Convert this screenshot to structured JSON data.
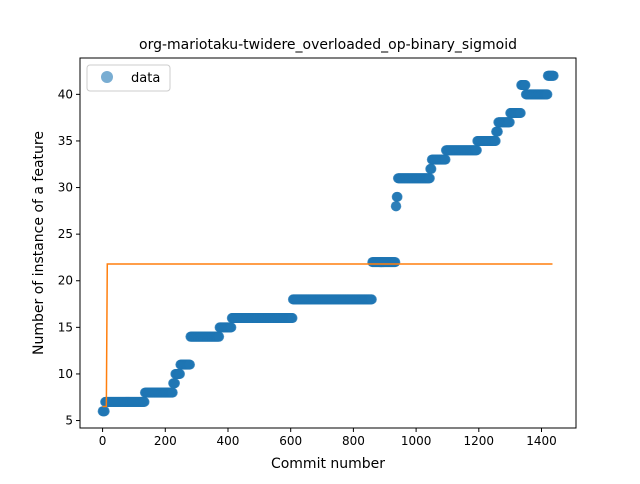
{
  "chart_data": {
    "type": "scatter",
    "title": "org-mariotaku-twidere_overloaded_op-binary_sigmoid",
    "xlabel": "Commit number",
    "ylabel": "Number of instance of a feature",
    "xlim": [
      -72,
      1510
    ],
    "ylim": [
      4.2,
      43.9
    ],
    "xticks": [
      0,
      200,
      400,
      600,
      800,
      1000,
      1200,
      1400
    ],
    "yticks": [
      5,
      10,
      15,
      20,
      25,
      30,
      35,
      40
    ],
    "legend": {
      "position": "top-left",
      "entries": [
        "data"
      ]
    },
    "grid": false,
    "colors": {
      "data": "#1f77b4",
      "fit": "#ff7f0e"
    },
    "series": [
      {
        "name": "data",
        "kind": "scatter",
        "segments": [
          {
            "x0": 0,
            "x1": 8,
            "y": 6
          },
          {
            "x0": 8,
            "x1": 135,
            "y": 7
          },
          {
            "x0": 135,
            "x1": 225,
            "y": 8
          },
          {
            "x0": 225,
            "x1": 232,
            "y": 9
          },
          {
            "x0": 232,
            "x1": 248,
            "y": 10
          },
          {
            "x0": 248,
            "x1": 280,
            "y": 11
          },
          {
            "x0": 280,
            "x1": 373,
            "y": 14
          },
          {
            "x0": 373,
            "x1": 412,
            "y": 15
          },
          {
            "x0": 412,
            "x1": 607,
            "y": 16
          },
          {
            "x0": 607,
            "x1": 860,
            "y": 18
          },
          {
            "x0": 860,
            "x1": 935,
            "y": 22
          },
          {
            "x0": 935,
            "x1": 938,
            "y": 28
          },
          {
            "x0": 938,
            "x1": 942,
            "y": 29
          },
          {
            "x0": 942,
            "x1": 1045,
            "y": 31
          },
          {
            "x0": 1045,
            "x1": 1050,
            "y": 32
          },
          {
            "x0": 1050,
            "x1": 1095,
            "y": 33
          },
          {
            "x0": 1095,
            "x1": 1195,
            "y": 34
          },
          {
            "x0": 1195,
            "x1": 1255,
            "y": 35
          },
          {
            "x0": 1255,
            "x1": 1262,
            "y": 36
          },
          {
            "x0": 1262,
            "x1": 1300,
            "y": 37
          },
          {
            "x0": 1300,
            "x1": 1335,
            "y": 38
          },
          {
            "x0": 1335,
            "x1": 1350,
            "y": 41
          },
          {
            "x0": 1350,
            "x1": 1420,
            "y": 40
          },
          {
            "x0": 1420,
            "x1": 1440,
            "y": 42
          }
        ]
      },
      {
        "kind": "line",
        "points": [
          [
            0,
            6.5
          ],
          [
            12,
            6.5
          ],
          [
            15,
            21.8
          ],
          [
            1435,
            21.8
          ]
        ]
      }
    ]
  }
}
